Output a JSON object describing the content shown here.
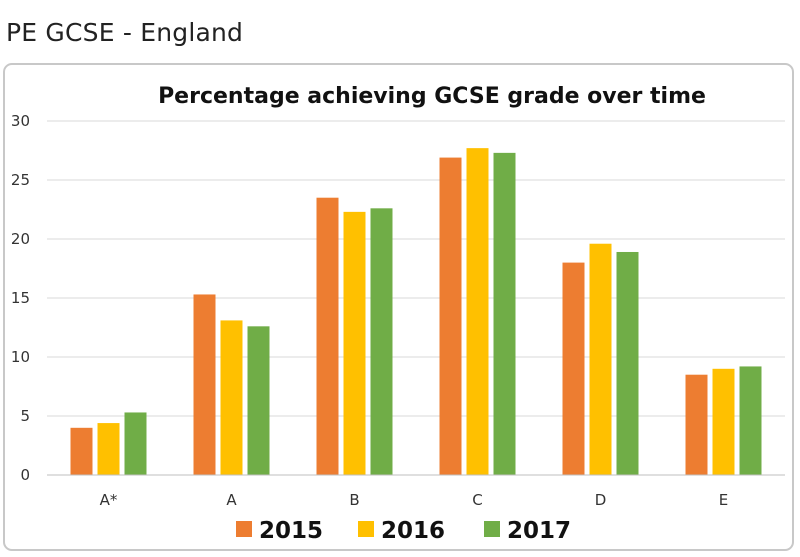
{
  "page": {
    "heading": "PE GCSE - England"
  },
  "chart_data": {
    "type": "bar",
    "title": "Percentage achieving GCSE grade over time",
    "xlabel": "",
    "ylabel": "",
    "categories": [
      "A*",
      "A",
      "B",
      "C",
      "D",
      "E"
    ],
    "ylim": [
      0,
      30
    ],
    "yticks": [
      0,
      5,
      10,
      15,
      20,
      25,
      30
    ],
    "grid": true,
    "legend_position": "bottom",
    "series": [
      {
        "name": "2015",
        "color": "#ED7D31",
        "values": [
          4.0,
          15.3,
          23.5,
          26.9,
          18.0,
          8.5
        ]
      },
      {
        "name": "2016",
        "color": "#FFC000",
        "values": [
          4.4,
          13.1,
          22.3,
          27.7,
          19.6,
          9.0
        ]
      },
      {
        "name": "2017",
        "color": "#70AD47",
        "values": [
          5.3,
          12.6,
          22.6,
          27.3,
          18.9,
          9.2
        ]
      }
    ]
  }
}
